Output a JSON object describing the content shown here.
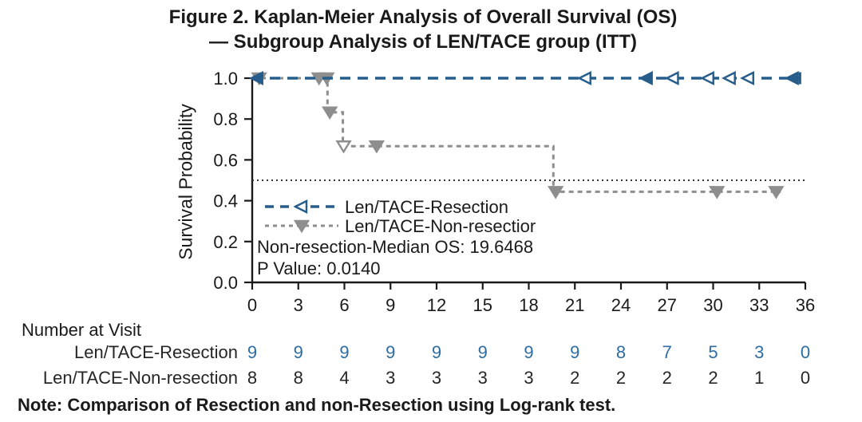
{
  "title": {
    "line1": "Figure 2. Kaplan-Meier Analysis of Overall Survival (OS)",
    "line2": "— Subgroup Analysis of LEN/TACE group (ITT)"
  },
  "chart_data": {
    "type": "line",
    "subtype": "kaplan-meier-step-curves",
    "title": "",
    "xlabel": "",
    "ylabel": "Survival Probability",
    "xlim": [
      0,
      36
    ],
    "ylim": [
      0.0,
      1.0
    ],
    "x_ticks": [
      0,
      3,
      6,
      9,
      12,
      15,
      18,
      21,
      24,
      27,
      30,
      33,
      36
    ],
    "y_ticks": [
      "0.0",
      "0.2",
      "0.4",
      "0.6",
      "0.8",
      "1.0"
    ],
    "grid": false,
    "reference_line_y": 0.5,
    "legend_position": "inside lower-left",
    "legend_labels": [
      "Len/TACE-Resection",
      "Len/TACE-Non-resectior"
    ],
    "annotations": [
      "Non-resection-Median OS: 19.6468",
      "P Value: 0.0140"
    ],
    "series": [
      {
        "name": "Len/TACE-Resection",
        "color": "#275d8b",
        "line_style": "dashed",
        "marker": "triangle-left",
        "steps": [
          [
            0,
            1.0
          ],
          [
            35.7,
            1.0
          ]
        ],
        "censor_marks": [
          {
            "t": 0.35,
            "p": 1.0,
            "style": "filled"
          },
          {
            "t": 21.7,
            "p": 1.0,
            "style": "open"
          },
          {
            "t": 25.7,
            "p": 1.0,
            "style": "filled"
          },
          {
            "t": 27.4,
            "p": 1.0,
            "style": "open"
          },
          {
            "t": 29.7,
            "p": 1.0,
            "style": "open"
          },
          {
            "t": 31.1,
            "p": 1.0,
            "style": "open"
          },
          {
            "t": 32.3,
            "p": 1.0,
            "style": "open"
          },
          {
            "t": 35.2,
            "p": 1.0,
            "style": "filled"
          },
          {
            "t": 35.65,
            "p": 1.0,
            "style": "bar"
          }
        ]
      },
      {
        "name": "Len/TACE-Non-resection",
        "color": "#8e8e8e",
        "line_style": "dashed",
        "marker": "triangle-down",
        "steps": [
          [
            0,
            1.0
          ],
          [
            4.9,
            1.0
          ],
          [
            4.9,
            0.833
          ],
          [
            5.9,
            0.833
          ],
          [
            5.9,
            0.667
          ],
          [
            19.6,
            0.667
          ],
          [
            19.6,
            0.444
          ],
          [
            34.4,
            0.444
          ]
        ],
        "censor_marks": [
          {
            "t": 0.45,
            "p": 1.0,
            "style": "filled"
          },
          {
            "t": 4.35,
            "p": 1.0,
            "style": "filled"
          },
          {
            "t": 4.85,
            "p": 1.0,
            "style": "filled"
          },
          {
            "t": 5.05,
            "p": 0.833,
            "style": "filled"
          },
          {
            "t": 5.95,
            "p": 0.667,
            "style": "open"
          },
          {
            "t": 8.1,
            "p": 0.667,
            "style": "filled"
          },
          {
            "t": 19.75,
            "p": 0.444,
            "style": "filled"
          },
          {
            "t": 30.25,
            "p": 0.444,
            "style": "filled"
          },
          {
            "t": 34.1,
            "p": 0.444,
            "style": "filled"
          }
        ]
      }
    ],
    "number_at_visit": {
      "header": "Number at Visit",
      "time_points": [
        0,
        3,
        6,
        9,
        12,
        15,
        18,
        21,
        24,
        27,
        30,
        33,
        36
      ],
      "rows": [
        {
          "label": "Len/TACE-Resection",
          "color": "#2e6da4",
          "values": [
            9,
            9,
            9,
            9,
            9,
            9,
            9,
            9,
            8,
            7,
            5,
            3,
            0
          ]
        },
        {
          "label": "Len/TACE-Non-resection",
          "color": "#262626",
          "values": [
            8,
            8,
            4,
            3,
            3,
            3,
            3,
            2,
            2,
            2,
            2,
            1,
            0
          ]
        }
      ]
    }
  },
  "note": "Note: Comparison of Resection and non-Resection using Log-rank test."
}
